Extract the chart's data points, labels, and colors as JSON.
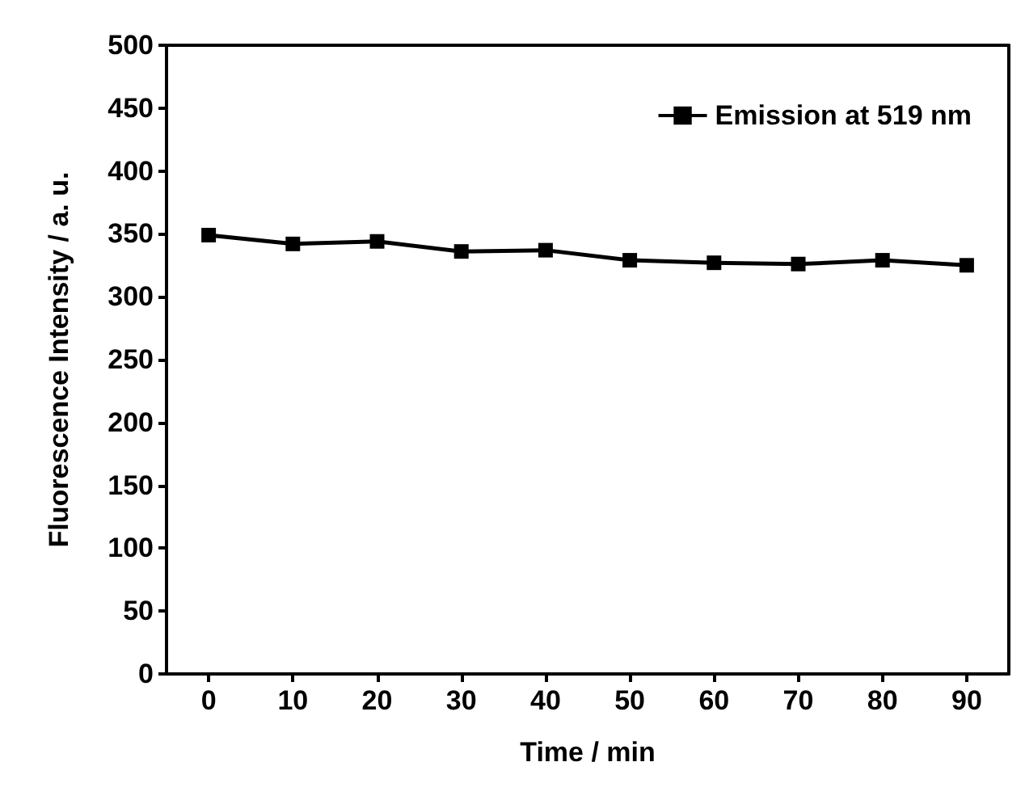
{
  "chart_data": {
    "type": "line",
    "xlabel": "Time / min",
    "ylabel": "Fluorescence Intensity / a. u.",
    "x": [
      0,
      10,
      20,
      30,
      40,
      50,
      60,
      70,
      80,
      90
    ],
    "series": [
      {
        "name": "Emission at 519 nm",
        "color": "#000000",
        "values": [
          349,
          342,
          344,
          336,
          337,
          329,
          327,
          326,
          329,
          325
        ]
      }
    ],
    "xlim": [
      -5,
      95
    ],
    "xticks": [
      0,
      10,
      20,
      30,
      40,
      50,
      60,
      70,
      80,
      90
    ],
    "ylim": [
      0,
      500
    ],
    "yticks": [
      0,
      50,
      100,
      150,
      200,
      250,
      300,
      350,
      400,
      450,
      500
    ],
    "grid": false,
    "legend": "top right",
    "marker": "square",
    "line_style": "solid"
  }
}
